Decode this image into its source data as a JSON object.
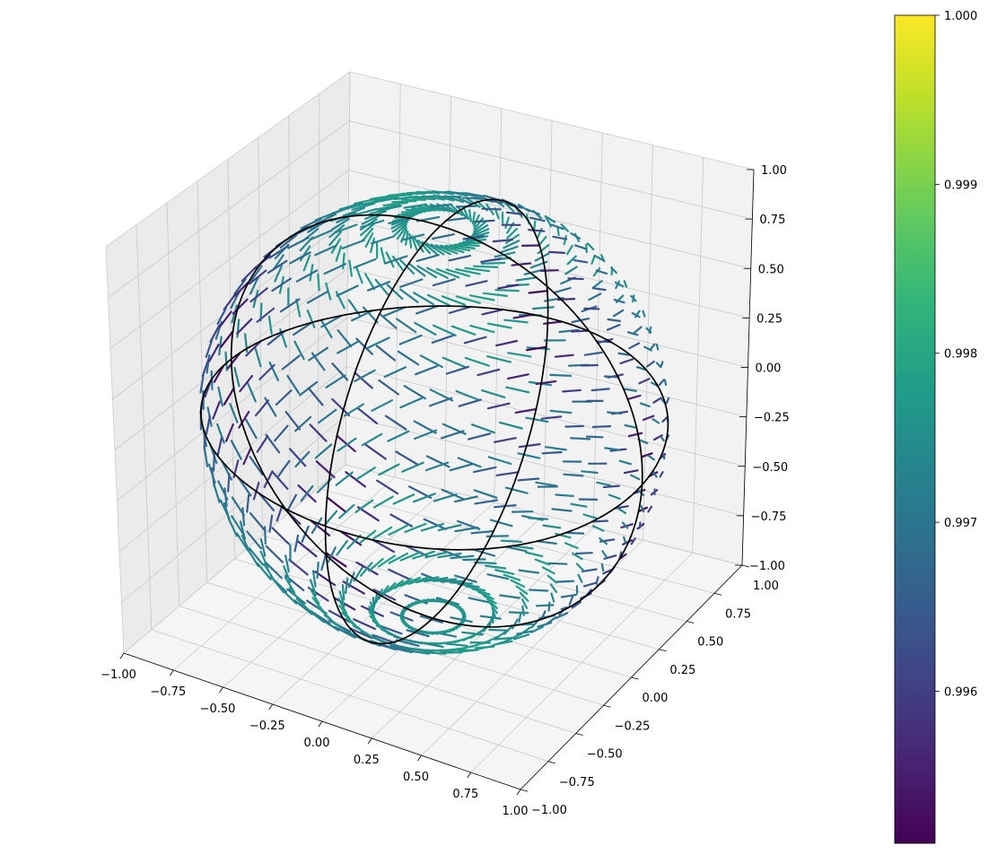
{
  "chart_data": {
    "type": "quiver3d",
    "title": "",
    "xlabel": "",
    "ylabel": "",
    "zlabel": "",
    "xlim": [
      -1.0,
      1.0
    ],
    "ylim": [
      -1.0,
      1.0
    ],
    "zlim": [
      -1.0,
      1.0
    ],
    "grid": true,
    "x_ticks": [
      "−1.00",
      "−0.75",
      "−0.50",
      "−0.25",
      "0.00",
      "0.25",
      "0.50",
      "0.75",
      "1.00"
    ],
    "y_ticks": [
      "−1.00",
      "−0.75",
      "−0.50",
      "−0.25",
      "0.00",
      "0.25",
      "0.50",
      "0.75",
      "1.00"
    ],
    "z_ticks": [
      "−1.00",
      "−0.75",
      "−0.50",
      "−0.25",
      "0.00",
      "0.25",
      "0.50",
      "0.75",
      "1.00"
    ],
    "surface": "unit sphere",
    "vector_length": 0.1,
    "great_circles": [
      {
        "plane": "xy",
        "color": "#000000"
      },
      {
        "plane": "xz",
        "color": "#000000"
      },
      {
        "plane": "yz",
        "color": "#000000"
      }
    ],
    "colorbar": {
      "colormap": "viridis",
      "range": [
        0.9951,
        1.0
      ],
      "ticks": [
        0.996,
        0.997,
        0.998,
        0.999,
        1.0
      ],
      "tick_labels": [
        "0.996",
        "0.997",
        "0.998",
        "0.999",
        "1.000"
      ],
      "placement": "right"
    }
  }
}
